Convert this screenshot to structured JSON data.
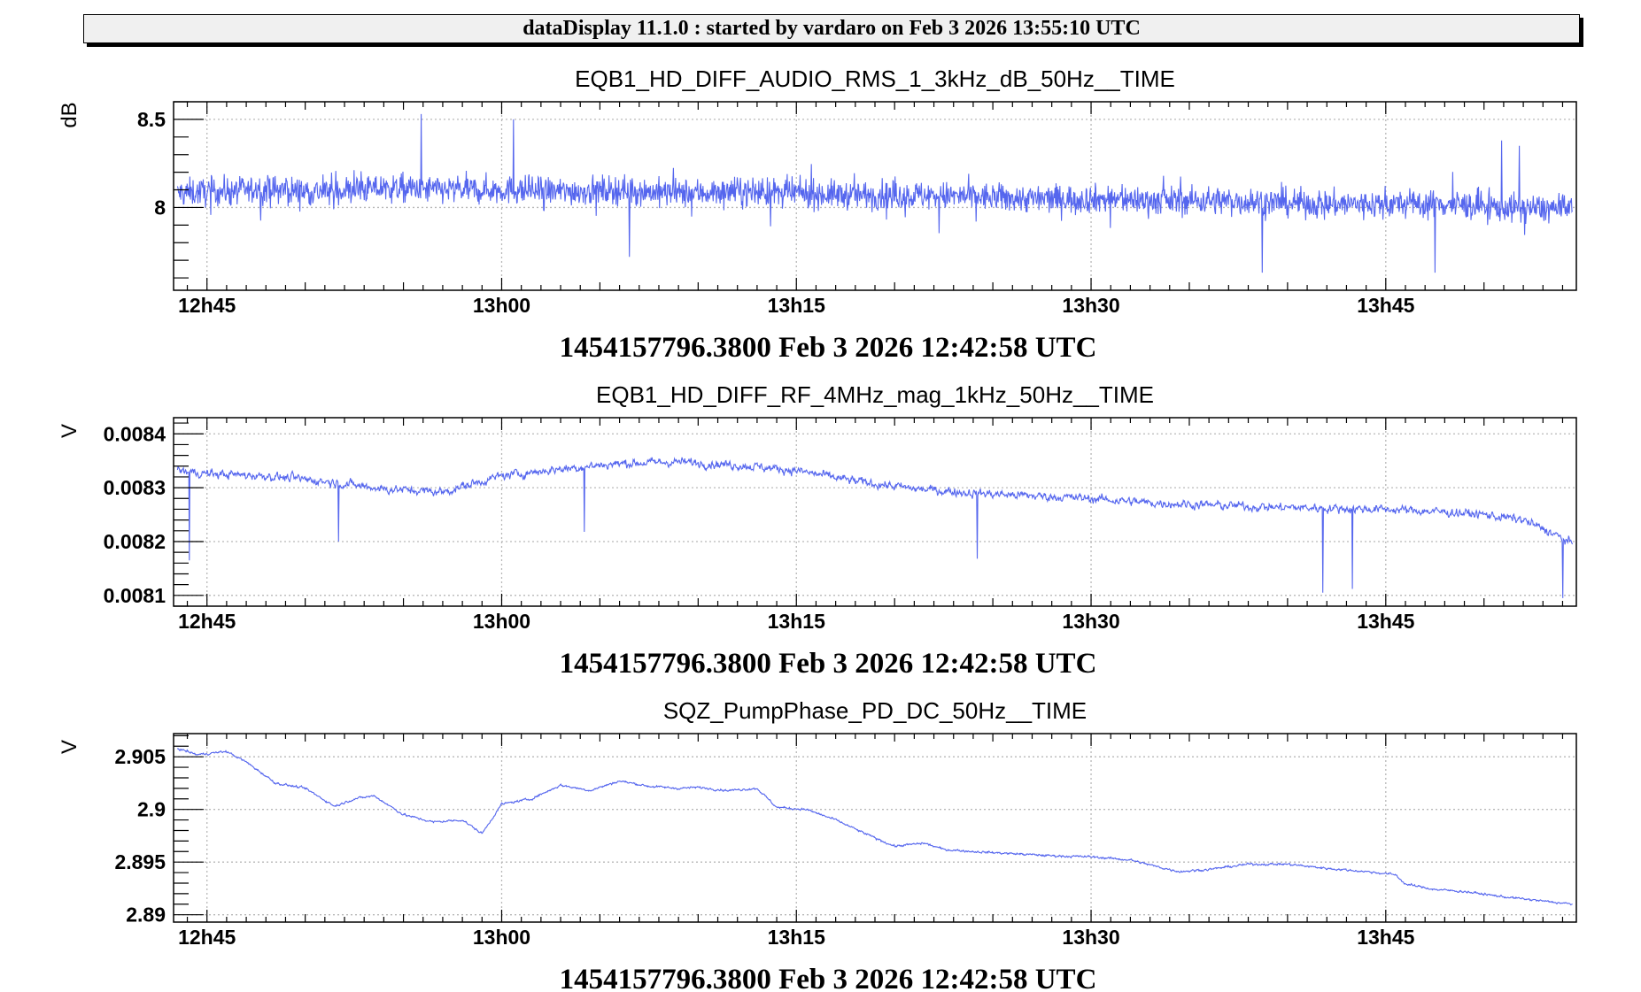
{
  "header": {
    "title": "dataDisplay 11.1.0 : started by vardaro on Feb  3 2026 13:55:10 UTC"
  },
  "colors": {
    "trace": "#5566ee",
    "frame": "#000000",
    "grid": "#b8b8b8"
  },
  "chart_data": [
    {
      "type": "line",
      "title": "EQB1_HD_DIFF_AUDIO_RMS_1_3kHz_dB_50Hz__TIME",
      "ylabel": "dB",
      "xlabel": "1454157796.3800 Feb 3 2026 12:42:58 UTC",
      "x_unit": "minutes after 12h00 UTC",
      "xlim": [
        43.3,
        114.7
      ],
      "ylim": [
        7.53,
        8.6
      ],
      "x_ticks": [
        45,
        60,
        75,
        90,
        105
      ],
      "x_tick_labels": [
        "12h45",
        "13h00",
        "13h15",
        "13h30",
        "13h45"
      ],
      "y_ticks": [
        8.0,
        8.5
      ],
      "y_tick_labels": [
        "8",
        "8.5"
      ],
      "grid": true,
      "series": [
        {
          "x": [
            43.5,
            45,
            48,
            51,
            54,
            57,
            60,
            63,
            66,
            69,
            72,
            75,
            78,
            81,
            84,
            87,
            90,
            93,
            96,
            99,
            102,
            105,
            108,
            111,
            114.5
          ],
          "y": [
            8.08,
            8.09,
            8.1,
            8.09,
            8.11,
            8.1,
            8.1,
            8.09,
            8.1,
            8.08,
            8.09,
            8.08,
            8.07,
            8.07,
            8.06,
            8.05,
            8.05,
            8.04,
            8.04,
            8.03,
            8.02,
            8.02,
            8.02,
            8.0,
            7.99
          ],
          "noise": 0.09,
          "spikes": [
            [
              55.9,
              8.53
            ],
            [
              60.6,
              8.5
            ],
            [
              110.9,
              8.38
            ],
            [
              111.8,
              8.35
            ],
            [
              66.5,
              7.72
            ],
            [
              98.7,
              7.63
            ],
            [
              107.5,
              7.63
            ]
          ]
        }
      ]
    },
    {
      "type": "line",
      "title": "EQB1_HD_DIFF_RF_4MHz_mag_1kHz_50Hz__TIME",
      "ylabel": "V",
      "xlabel": "1454157796.3800 Feb 3 2026 12:42:58 UTC",
      "x_unit": "minutes after 12h00 UTC",
      "xlim": [
        43.3,
        114.7
      ],
      "ylim": [
        0.00808,
        0.00843
      ],
      "x_ticks": [
        45,
        60,
        75,
        90,
        105
      ],
      "x_tick_labels": [
        "12h45",
        "13h00",
        "13h15",
        "13h30",
        "13h45"
      ],
      "y_ticks": [
        0.0081,
        0.0082,
        0.0083,
        0.0084
      ],
      "y_tick_labels": [
        "0.0081",
        "0.0082",
        "0.0083",
        "0.0084"
      ],
      "grid": true,
      "series": [
        {
          "x": [
            43.5,
            45,
            48,
            51,
            54,
            57,
            60,
            63,
            66,
            69,
            72,
            75,
            78,
            81,
            84,
            87,
            90,
            93,
            96,
            99,
            102,
            105,
            108,
            110,
            112,
            113.5,
            114.5
          ],
          "y": [
            0.008332,
            0.008326,
            0.008322,
            0.008312,
            0.008298,
            0.008292,
            0.008322,
            0.008335,
            0.008345,
            0.008348,
            0.008342,
            0.008332,
            0.008312,
            0.008298,
            0.00829,
            0.008285,
            0.00828,
            0.008272,
            0.008268,
            0.008264,
            0.008262,
            0.00826,
            0.008255,
            0.00825,
            0.00824,
            0.008215,
            0.008195
          ],
          "noise": 1.2e-05,
          "spikes": [
            [
              44.1,
              0.008165
            ],
            [
              51.7,
              0.0082
            ],
            [
              64.2,
              0.008218
            ],
            [
              84.2,
              0.008168
            ],
            [
              101.8,
              0.008105
            ],
            [
              103.3,
              0.008112
            ],
            [
              114.0,
              0.008095
            ]
          ]
        }
      ]
    },
    {
      "type": "line",
      "title": "SQZ_PumpPhase_PD_DC_50Hz__TIME",
      "ylabel": "V",
      "xlabel": "1454157796.3800 Feb 3 2026 12:42:58 UTC",
      "x_unit": "minutes after 12h00 UTC",
      "xlim": [
        43.3,
        114.7
      ],
      "ylim": [
        2.8893,
        2.9072
      ],
      "x_ticks": [
        45,
        60,
        75,
        90,
        105
      ],
      "x_tick_labels": [
        "12h45",
        "13h00",
        "13h15",
        "13h30",
        "13h45"
      ],
      "y_ticks": [
        2.89,
        2.895,
        2.9,
        2.905
      ],
      "y_tick_labels": [
        "2.89",
        "2.895",
        "2.9",
        "2.905"
      ],
      "grid": true,
      "series": [
        {
          "x": [
            43.5,
            44.5,
            46.0,
            47.0,
            48.5,
            50.0,
            51.5,
            52.5,
            53.5,
            55.0,
            56.5,
            58.0,
            59.0,
            60.0,
            61.5,
            63.0,
            64.5,
            66.0,
            67.5,
            69.0,
            70.0,
            71.5,
            73.0,
            74.0,
            75.5,
            77.0,
            78.5,
            80.0,
            81.5,
            82.5,
            84.0,
            86.0,
            88.0,
            90.0,
            92.0,
            93.5,
            94.5,
            96.0,
            98.0,
            100.0,
            102.0,
            104.0,
            105.5,
            106.0,
            107.5,
            109.0,
            111.0,
            112.5,
            114.5
          ],
          "y": [
            2.9058,
            2.9052,
            2.9055,
            2.9045,
            2.9025,
            2.902,
            2.9003,
            2.901,
            2.9013,
            2.8995,
            2.8988,
            2.899,
            2.8977,
            2.9005,
            2.901,
            2.9023,
            2.9018,
            2.9027,
            2.9022,
            2.902,
            2.9021,
            2.9018,
            2.902,
            2.9002,
            2.9,
            2.899,
            2.8977,
            2.8965,
            2.8968,
            2.8962,
            2.896,
            2.8958,
            2.8956,
            2.8955,
            2.8952,
            2.8945,
            2.8941,
            2.8943,
            2.8948,
            2.8948,
            2.8944,
            2.8941,
            2.8938,
            2.8929,
            2.8924,
            2.8922,
            2.8917,
            2.8914,
            2.891
          ],
          "noise": 0.00016,
          "spikes": []
        }
      ]
    }
  ]
}
